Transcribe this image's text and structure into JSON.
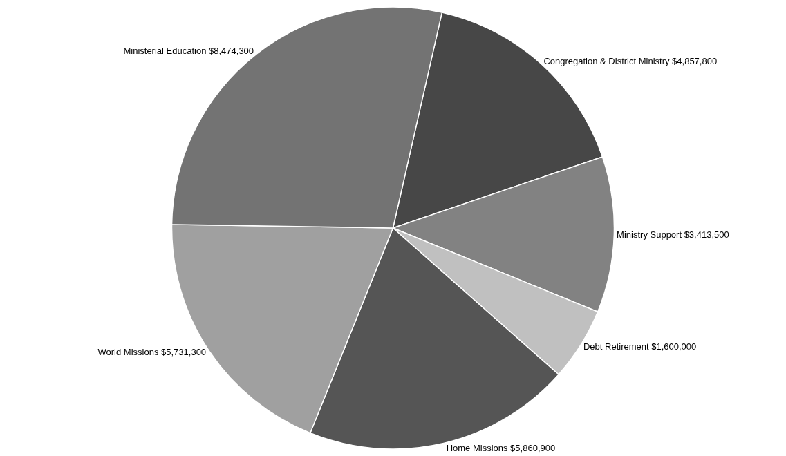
{
  "chart_data": {
    "type": "pie",
    "categories": [
      "Congregation & District Ministry",
      "Ministry Support",
      "Debt Retirement",
      "Home Missions",
      "World Missions",
      "Ministerial Education"
    ],
    "values": [
      4857800,
      3413500,
      1600000,
      5860900,
      5731300,
      8474300
    ],
    "value_labels": [
      "$4,857,800",
      "$3,413,500",
      "$1,600,000",
      "$5,860,900",
      "$5,731,300",
      "$8,474,300"
    ],
    "colors": [
      "#474747",
      "#828282",
      "#c0c0c0",
      "#555555",
      "#a0a0a0",
      "#737373"
    ],
    "legend": false
  }
}
